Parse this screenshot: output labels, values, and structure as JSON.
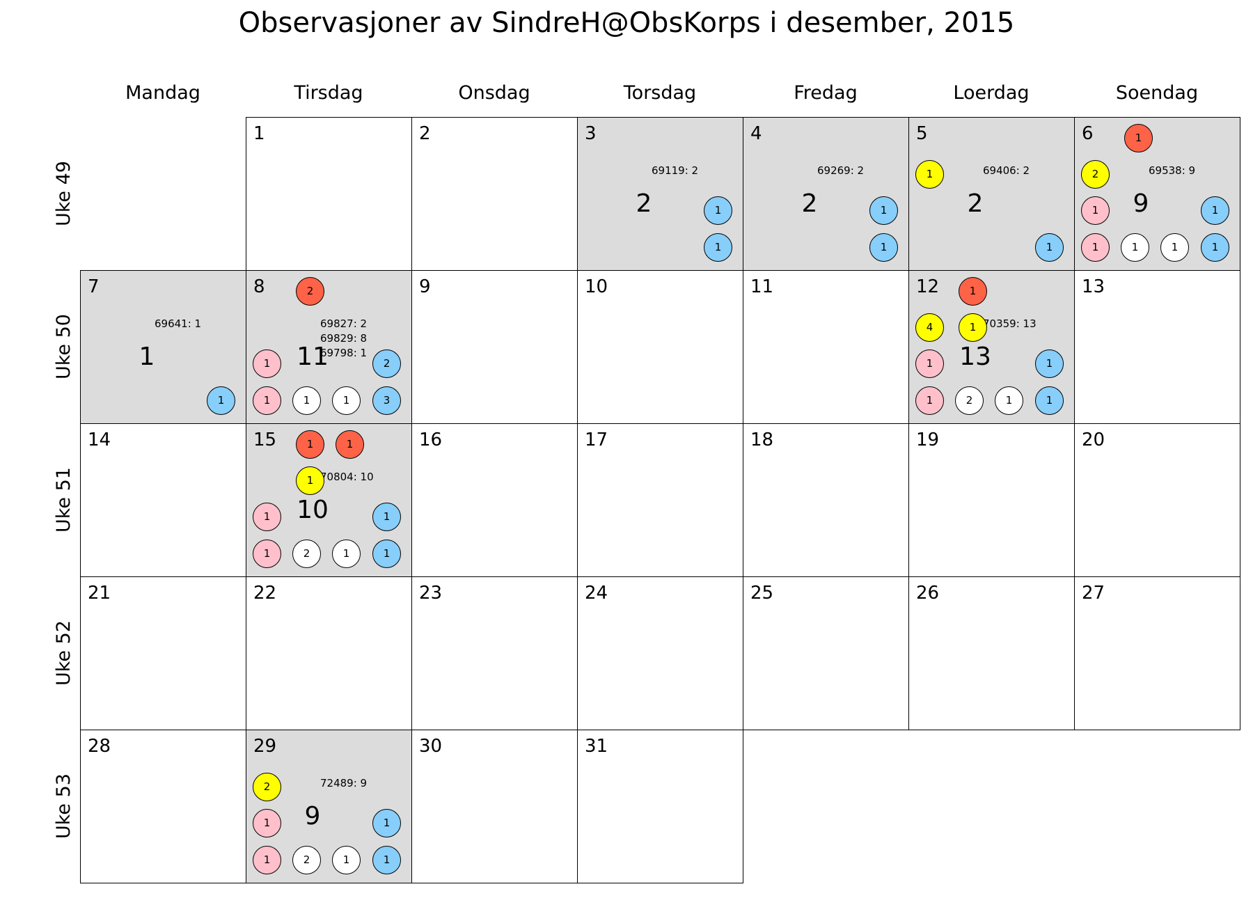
{
  "chart_data": {
    "type": "table",
    "title": "Observasjoner av SindreH@ObsKorps i desember, 2015",
    "weekdays": [
      "Mandag",
      "Tirsdag",
      "Onsdag",
      "Torsdag",
      "Fredag",
      "Loerdag",
      "Soendag"
    ],
    "weeks": [
      "Uke 49",
      "Uke 50",
      "Uke 51",
      "Uke 52",
      "Uke 53"
    ],
    "first_weekday_index": 1,
    "days_in_month": 31,
    "colors": {
      "observed_cell": "#dcdcdc",
      "empty_cell": "#ffffff",
      "red": "#ff6347",
      "yellow": "#ffff00",
      "pink": "#ffc0cb",
      "white": "#ffffff",
      "blue": "#87cefa"
    },
    "observations": [
      {
        "day": 3,
        "total": "2",
        "lists": [
          "69119: 2"
        ],
        "bubbles": [
          {
            "slot": "mid-right",
            "color": "blue",
            "value": "1"
          },
          {
            "slot": "bot-4",
            "color": "blue",
            "value": "1"
          }
        ]
      },
      {
        "day": 4,
        "total": "2",
        "lists": [
          "69269: 2"
        ],
        "bubbles": [
          {
            "slot": "mid-right",
            "color": "blue",
            "value": "1"
          },
          {
            "slot": "bot-4",
            "color": "blue",
            "value": "1"
          }
        ]
      },
      {
        "day": 5,
        "total": "2",
        "lists": [
          "69406: 2"
        ],
        "bubbles": [
          {
            "slot": "list-left",
            "color": "yellow",
            "value": "1"
          },
          {
            "slot": "bot-4",
            "color": "blue",
            "value": "1"
          }
        ]
      },
      {
        "day": 6,
        "total": "9",
        "lists": [
          "69538: 9"
        ],
        "bubbles": [
          {
            "slot": "top-1",
            "color": "red",
            "value": "1"
          },
          {
            "slot": "list-left",
            "color": "yellow",
            "value": "2"
          },
          {
            "slot": "mid-left",
            "color": "pink",
            "value": "1"
          },
          {
            "slot": "mid-right",
            "color": "blue",
            "value": "1"
          },
          {
            "slot": "bot-1",
            "color": "pink",
            "value": "1"
          },
          {
            "slot": "bot-2",
            "color": "white",
            "value": "1"
          },
          {
            "slot": "bot-3",
            "color": "white",
            "value": "1"
          },
          {
            "slot": "bot-4",
            "color": "blue",
            "value": "1"
          }
        ]
      },
      {
        "day": 7,
        "total": "1",
        "lists": [
          "69641: 1"
        ],
        "bubbles": [
          {
            "slot": "bot-4",
            "color": "blue",
            "value": "1"
          }
        ]
      },
      {
        "day": 8,
        "total": "11",
        "lists": [
          "69827: 2",
          "69829: 8",
          "69798: 1"
        ],
        "bubbles": [
          {
            "slot": "top-1",
            "color": "red",
            "value": "2"
          },
          {
            "slot": "mid-left",
            "color": "pink",
            "value": "1"
          },
          {
            "slot": "mid-right",
            "color": "blue",
            "value": "2"
          },
          {
            "slot": "bot-1",
            "color": "pink",
            "value": "1"
          },
          {
            "slot": "bot-2",
            "color": "white",
            "value": "1"
          },
          {
            "slot": "bot-3",
            "color": "white",
            "value": "1"
          },
          {
            "slot": "bot-4",
            "color": "blue",
            "value": "3"
          }
        ]
      },
      {
        "day": 12,
        "total": "13",
        "lists": [
          "70359: 13"
        ],
        "bubbles": [
          {
            "slot": "top-1",
            "color": "red",
            "value": "1"
          },
          {
            "slot": "list-left",
            "color": "yellow",
            "value": "4"
          },
          {
            "slot": "list-mid",
            "color": "yellow",
            "value": "1"
          },
          {
            "slot": "mid-left",
            "color": "pink",
            "value": "1"
          },
          {
            "slot": "mid-right",
            "color": "blue",
            "value": "1"
          },
          {
            "slot": "bot-1",
            "color": "pink",
            "value": "1"
          },
          {
            "slot": "bot-2",
            "color": "white",
            "value": "2"
          },
          {
            "slot": "bot-3",
            "color": "white",
            "value": "1"
          },
          {
            "slot": "bot-4",
            "color": "blue",
            "value": "1"
          }
        ]
      },
      {
        "day": 15,
        "total": "10",
        "lists": [
          "70804: 10"
        ],
        "bubbles": [
          {
            "slot": "top-1",
            "color": "red",
            "value": "1"
          },
          {
            "slot": "top-2",
            "color": "red",
            "value": "1"
          },
          {
            "slot": "list-mid",
            "color": "yellow",
            "value": "1"
          },
          {
            "slot": "mid-left",
            "color": "pink",
            "value": "1"
          },
          {
            "slot": "mid-right",
            "color": "blue",
            "value": "1"
          },
          {
            "slot": "bot-1",
            "color": "pink",
            "value": "1"
          },
          {
            "slot": "bot-2",
            "color": "white",
            "value": "2"
          },
          {
            "slot": "bot-3",
            "color": "white",
            "value": "1"
          },
          {
            "slot": "bot-4",
            "color": "blue",
            "value": "1"
          }
        ]
      },
      {
        "day": 29,
        "total": "9",
        "lists": [
          "72489: 9"
        ],
        "bubbles": [
          {
            "slot": "list-left",
            "color": "yellow",
            "value": "2"
          },
          {
            "slot": "mid-left",
            "color": "pink",
            "value": "1"
          },
          {
            "slot": "mid-right",
            "color": "blue",
            "value": "1"
          },
          {
            "slot": "bot-1",
            "color": "pink",
            "value": "1"
          },
          {
            "slot": "bot-2",
            "color": "white",
            "value": "2"
          },
          {
            "slot": "bot-3",
            "color": "white",
            "value": "1"
          },
          {
            "slot": "bot-4",
            "color": "blue",
            "value": "1"
          }
        ]
      }
    ]
  }
}
